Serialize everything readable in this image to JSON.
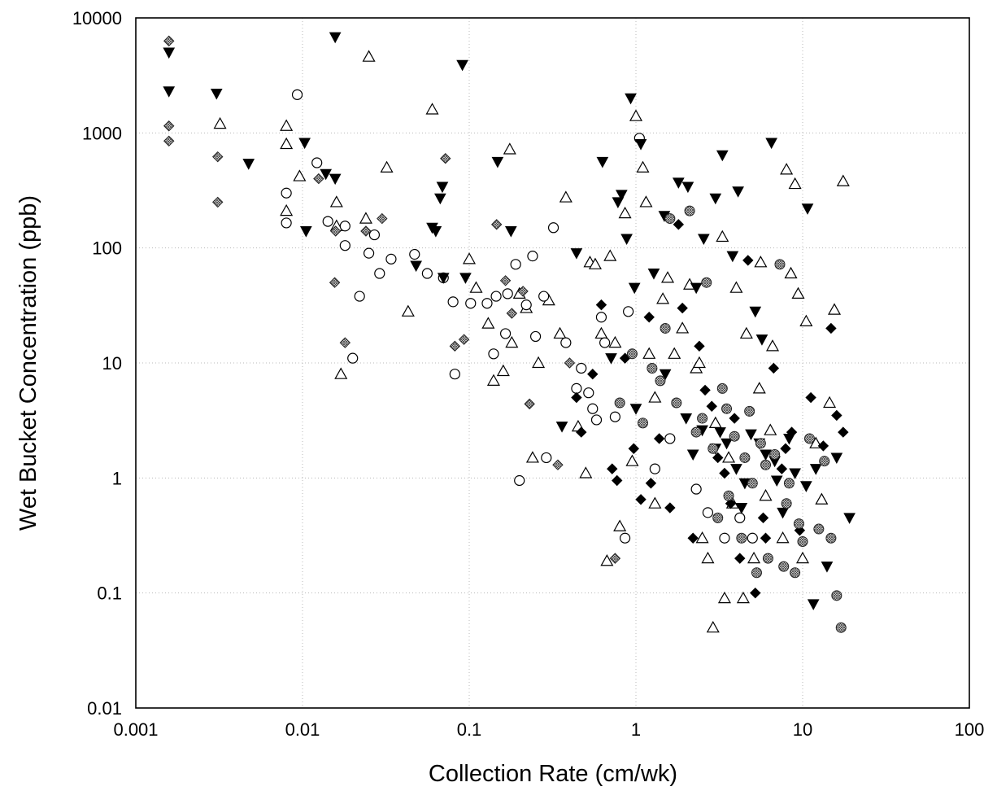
{
  "chart_data": {
    "type": "scatter",
    "title": "",
    "xlabel": "Collection Rate (cm/wk)",
    "ylabel": "Wet Bucket Concentration (ppb)",
    "xscale": "log",
    "yscale": "log",
    "xlim": [
      0.001,
      100
    ],
    "ylim": [
      0.01,
      10000
    ],
    "grid": true,
    "legend": "none",
    "x_ticks": [
      "0.001",
      "0.01",
      "0.1",
      "1",
      "10",
      "100"
    ],
    "y_ticks": [
      "0.01",
      "0.1",
      "1",
      "10",
      "100",
      "1000",
      "10000"
    ],
    "series": [
      {
        "marker": "open-triangle",
        "color": "#000000",
        "points": [
          [
            0.008,
            1150
          ],
          [
            0.008,
            800
          ],
          [
            0.0032,
            1200
          ],
          [
            0.0096,
            420
          ],
          [
            0.008,
            210
          ],
          [
            0.025,
            4600
          ],
          [
            0.016,
            250
          ],
          [
            0.016,
            155
          ],
          [
            0.024,
            180
          ],
          [
            0.032,
            500
          ],
          [
            0.043,
            28
          ],
          [
            0.017,
            8
          ],
          [
            0.06,
            1600
          ],
          [
            0.1,
            80
          ],
          [
            0.11,
            45
          ],
          [
            0.13,
            22
          ],
          [
            0.14,
            7
          ],
          [
            0.16,
            8.5
          ],
          [
            0.175,
            720
          ],
          [
            0.18,
            15
          ],
          [
            0.2,
            40
          ],
          [
            0.22,
            30
          ],
          [
            0.26,
            10
          ],
          [
            0.3,
            35
          ],
          [
            0.35,
            18
          ],
          [
            0.38,
            275
          ],
          [
            0.45,
            2.8
          ],
          [
            0.5,
            1.1
          ],
          [
            0.53,
            75
          ],
          [
            0.57,
            72
          ],
          [
            0.62,
            18
          ],
          [
            0.67,
            0.19
          ],
          [
            0.7,
            85
          ],
          [
            0.75,
            15
          ],
          [
            0.8,
            0.38
          ],
          [
            0.86,
            200
          ],
          [
            0.95,
            1.4
          ],
          [
            1.0,
            1400
          ],
          [
            1.1,
            500
          ],
          [
            1.15,
            250
          ],
          [
            1.2,
            12
          ],
          [
            1.3,
            5
          ],
          [
            1.45,
            36
          ],
          [
            1.55,
            55
          ],
          [
            1.7,
            12
          ],
          [
            1.9,
            20
          ],
          [
            2.1,
            48
          ],
          [
            2.3,
            9
          ],
          [
            2.5,
            0.3
          ],
          [
            2.7,
            0.2
          ],
          [
            2.9,
            0.05
          ],
          [
            3.0,
            3
          ],
          [
            3.3,
            125
          ],
          [
            3.4,
            0.09
          ],
          [
            3.8,
            0.6
          ],
          [
            4.0,
            45
          ],
          [
            4.4,
            0.09
          ],
          [
            4.6,
            18
          ],
          [
            5.1,
            0.2
          ],
          [
            5.5,
            6
          ],
          [
            5.6,
            75
          ],
          [
            6.0,
            0.7
          ],
          [
            6.6,
            14
          ],
          [
            7.6,
            0.3
          ],
          [
            8.0,
            480
          ],
          [
            8.5,
            60
          ],
          [
            9.0,
            360
          ],
          [
            9.4,
            40
          ],
          [
            10.0,
            0.2
          ],
          [
            10.5,
            23
          ],
          [
            12,
            2
          ],
          [
            13,
            0.65
          ],
          [
            14.5,
            4.5
          ],
          [
            15.5,
            29
          ],
          [
            17.5,
            380
          ],
          [
            1.3,
            0.6
          ],
          [
            2.4,
            10
          ],
          [
            0.24,
            1.5
          ],
          [
            3.6,
            1.5
          ],
          [
            6.4,
            2.6
          ]
        ]
      },
      {
        "marker": "open-circle",
        "color": "#000000",
        "points": [
          [
            0.0093,
            2150
          ],
          [
            0.008,
            300
          ],
          [
            0.008,
            165
          ],
          [
            0.0122,
            550
          ],
          [
            0.0142,
            170
          ],
          [
            0.018,
            105
          ],
          [
            0.018,
            155
          ],
          [
            0.022,
            38
          ],
          [
            0.02,
            11
          ],
          [
            0.025,
            90
          ],
          [
            0.027,
            130
          ],
          [
            0.029,
            60
          ],
          [
            0.034,
            80
          ],
          [
            0.047,
            88
          ],
          [
            0.056,
            60
          ],
          [
            0.07,
            55
          ],
          [
            0.08,
            34
          ],
          [
            0.082,
            8
          ],
          [
            0.102,
            33
          ],
          [
            0.128,
            33
          ],
          [
            0.14,
            12
          ],
          [
            0.145,
            38
          ],
          [
            0.165,
            18
          ],
          [
            0.17,
            40
          ],
          [
            0.19,
            72
          ],
          [
            0.2,
            0.95
          ],
          [
            0.22,
            32
          ],
          [
            0.24,
            85
          ],
          [
            0.25,
            17
          ],
          [
            0.28,
            38
          ],
          [
            0.29,
            1.5
          ],
          [
            0.32,
            150
          ],
          [
            0.38,
            15
          ],
          [
            0.44,
            6
          ],
          [
            0.47,
            9
          ],
          [
            0.52,
            5.5
          ],
          [
            0.55,
            4
          ],
          [
            0.58,
            3.2
          ],
          [
            0.65,
            15
          ],
          [
            0.75,
            3.4
          ],
          [
            0.86,
            0.3
          ],
          [
            1.05,
            900
          ],
          [
            1.3,
            1.2
          ],
          [
            1.6,
            2.2
          ],
          [
            2.3,
            0.8
          ],
          [
            2.7,
            0.5
          ],
          [
            3.4,
            0.3
          ],
          [
            4.2,
            0.45
          ],
          [
            5.0,
            0.3
          ],
          [
            0.62,
            25
          ],
          [
            0.9,
            28
          ]
        ]
      },
      {
        "marker": "filled-inverted-triangle",
        "color": "#000000",
        "points": [
          [
            0.00158,
            5000
          ],
          [
            0.00158,
            2300
          ],
          [
            0.00305,
            2200
          ],
          [
            0.00475,
            540
          ],
          [
            0.0103,
            820
          ],
          [
            0.0105,
            140
          ],
          [
            0.0138,
            440
          ],
          [
            0.0157,
            400
          ],
          [
            0.0157,
            6800
          ],
          [
            0.048,
            70
          ],
          [
            0.06,
            150
          ],
          [
            0.063,
            140
          ],
          [
            0.067,
            270
          ],
          [
            0.069,
            340
          ],
          [
            0.07,
            55
          ],
          [
            0.091,
            3900
          ],
          [
            0.095,
            55
          ],
          [
            0.148,
            560
          ],
          [
            0.178,
            140
          ],
          [
            0.36,
            2.8
          ],
          [
            0.44,
            90
          ],
          [
            0.63,
            560
          ],
          [
            0.71,
            11
          ],
          [
            0.78,
            250
          ],
          [
            0.82,
            290
          ],
          [
            0.88,
            120
          ],
          [
            0.93,
            2000
          ],
          [
            0.98,
            45
          ],
          [
            1.07,
            800
          ],
          [
            1.28,
            60
          ],
          [
            1.48,
            190
          ],
          [
            1.8,
            370
          ],
          [
            2.05,
            340
          ],
          [
            2.3,
            45
          ],
          [
            2.55,
            120
          ],
          [
            3.0,
            270
          ],
          [
            3.3,
            640
          ],
          [
            3.8,
            85
          ],
          [
            4.1,
            310
          ],
          [
            4.9,
            2.4
          ],
          [
            5.2,
            28
          ],
          [
            5.7,
            16
          ],
          [
            6.5,
            820
          ],
          [
            7.6,
            0.5
          ],
          [
            8.3,
            2.2
          ],
          [
            10.7,
            220
          ],
          [
            11.6,
            0.08
          ],
          [
            14.0,
            0.17
          ],
          [
            16.0,
            1.5
          ],
          [
            19.1,
            0.45
          ],
          [
            1.0,
            4
          ],
          [
            1.5,
            8
          ],
          [
            2.0,
            3.3
          ],
          [
            2.5,
            2.6
          ],
          [
            3.0,
            1.8
          ],
          [
            3.5,
            2.0
          ],
          [
            4.0,
            1.2
          ],
          [
            4.5,
            0.9
          ],
          [
            6.0,
            1.6
          ],
          [
            7.0,
            0.95
          ],
          [
            9.0,
            1.1
          ],
          [
            10.5,
            0.85
          ],
          [
            12.0,
            1.2
          ],
          [
            2.2,
            1.6
          ],
          [
            3.2,
            2.5
          ],
          [
            5.5,
            2.0
          ],
          [
            4.3,
            0.55
          ],
          [
            6.8,
            1.4
          ]
        ]
      },
      {
        "marker": "filled-diamond",
        "color": "#000000",
        "points": [
          [
            0.44,
            5
          ],
          [
            0.47,
            2.5
          ],
          [
            0.55,
            8
          ],
          [
            0.62,
            32
          ],
          [
            0.72,
            1.2
          ],
          [
            0.77,
            0.95
          ],
          [
            0.86,
            11
          ],
          [
            0.97,
            1.8
          ],
          [
            1.07,
            0.65
          ],
          [
            1.23,
            0.9
          ],
          [
            1.38,
            2.2
          ],
          [
            1.6,
            0.55
          ],
          [
            1.8,
            160
          ],
          [
            2.2,
            0.3
          ],
          [
            2.6,
            5.8
          ],
          [
            2.85,
            4.2
          ],
          [
            3.4,
            1.1
          ],
          [
            3.7,
            0.6
          ],
          [
            4.2,
            0.2
          ],
          [
            4.7,
            78
          ],
          [
            5.2,
            0.1
          ],
          [
            6.0,
            0.3
          ],
          [
            6.7,
            9
          ],
          [
            7.5,
            1.2
          ],
          [
            8.6,
            2.5
          ],
          [
            9.6,
            0.35
          ],
          [
            11.2,
            5
          ],
          [
            13.3,
            1.9
          ],
          [
            14.8,
            20
          ],
          [
            16.0,
            3.5
          ],
          [
            17.5,
            2.5
          ],
          [
            1.2,
            25
          ],
          [
            1.9,
            30
          ],
          [
            2.4,
            14
          ],
          [
            3.1,
            1.5
          ],
          [
            3.9,
            3.3
          ],
          [
            5.8,
            0.45
          ],
          [
            7.9,
            1.8
          ]
        ]
      },
      {
        "marker": "hatched-diamond",
        "color": "#555555",
        "points": [
          [
            0.00158,
            6300
          ],
          [
            0.00158,
            1150
          ],
          [
            0.00158,
            850
          ],
          [
            0.0031,
            620
          ],
          [
            0.0031,
            250
          ],
          [
            0.0125,
            400
          ],
          [
            0.0156,
            50
          ],
          [
            0.0158,
            140
          ],
          [
            0.018,
            15
          ],
          [
            0.024,
            140
          ],
          [
            0.03,
            180
          ],
          [
            0.072,
            600
          ],
          [
            0.082,
            14
          ],
          [
            0.093,
            16
          ],
          [
            0.146,
            160
          ],
          [
            0.165,
            52
          ],
          [
            0.18,
            27
          ],
          [
            0.21,
            42
          ],
          [
            0.23,
            4.4
          ],
          [
            0.34,
            1.3
          ],
          [
            0.75,
            0.2
          ],
          [
            0.4,
            10
          ]
        ]
      },
      {
        "marker": "hatched-circle",
        "color": "#555555",
        "points": [
          [
            0.8,
            4.5
          ],
          [
            0.95,
            12
          ],
          [
            1.1,
            3
          ],
          [
            1.25,
            9
          ],
          [
            1.4,
            7
          ],
          [
            1.6,
            180
          ],
          [
            1.75,
            4.5
          ],
          [
            2.1,
            210
          ],
          [
            2.3,
            2.5
          ],
          [
            2.65,
            50
          ],
          [
            2.9,
            1.8
          ],
          [
            3.1,
            0.45
          ],
          [
            3.3,
            6
          ],
          [
            3.6,
            0.7
          ],
          [
            3.9,
            2.3
          ],
          [
            4.3,
            0.3
          ],
          [
            4.8,
            3.8
          ],
          [
            5.3,
            0.15
          ],
          [
            5.6,
            2
          ],
          [
            6.2,
            0.2
          ],
          [
            6.8,
            1.6
          ],
          [
            7.3,
            72
          ],
          [
            7.7,
            0.17
          ],
          [
            8.3,
            0.9
          ],
          [
            9.0,
            0.15
          ],
          [
            10.0,
            0.28
          ],
          [
            11.0,
            2.2
          ],
          [
            12.5,
            0.36
          ],
          [
            13.5,
            1.4
          ],
          [
            14.8,
            0.3
          ],
          [
            16.0,
            0.095
          ],
          [
            17.0,
            0.05
          ],
          [
            1.5,
            20
          ],
          [
            2.5,
            3.3
          ],
          [
            3.5,
            4
          ],
          [
            4.5,
            1.5
          ],
          [
            5.0,
            0.9
          ],
          [
            6.0,
            1.3
          ],
          [
            8.0,
            0.6
          ],
          [
            9.5,
            0.4
          ]
        ]
      }
    ]
  }
}
